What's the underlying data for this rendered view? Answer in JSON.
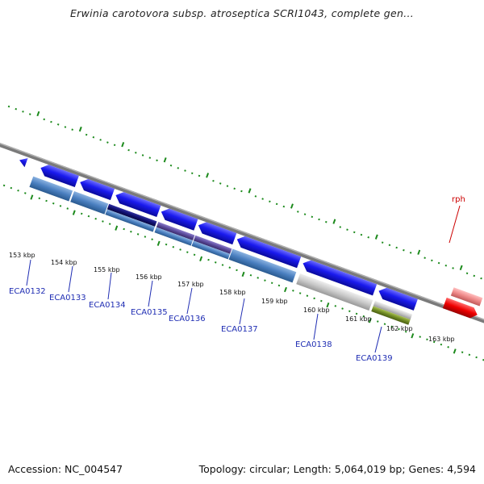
{
  "title": "Erwinia carotovora subsp. atroseptica SCRI1043, complete gen...",
  "footer": {
    "accession": "Accession: NC_004547",
    "summary": "Topology: circular; Length: 5,064,019 bp; Genes: 4,594"
  },
  "scale_labels": [
    "153 kbp",
    "154 kbp",
    "155 kbp",
    "156 kbp",
    "157 kbp",
    "158 kbp",
    "159 kbp",
    "160 kbp",
    "161 kbp",
    "162 kbp",
    "163 kbp"
  ],
  "gene_labels": [
    "ECA0132",
    "ECA0133",
    "ECA0134",
    "ECA0135",
    "ECA0136",
    "ECA0137",
    "ECA0138",
    "ECA0139"
  ],
  "feature_labels": [
    "rph"
  ],
  "colors": {
    "cds": "#1a1aee",
    "gene_row": "#4a7fc0",
    "dark_segment": "#101070",
    "purple_segment": "#5a4a9a",
    "gray_segment": "#c8c8c8",
    "olive_segment": "#6f8a24",
    "red_gene": "#ee0000",
    "pink_gene": "#ee8888",
    "cyan_gene": "#22ccee",
    "backbone": "#888888",
    "ticks": "#1c8a1c",
    "label_blue": "#1f2db3",
    "label_red": "#cc0000"
  }
}
